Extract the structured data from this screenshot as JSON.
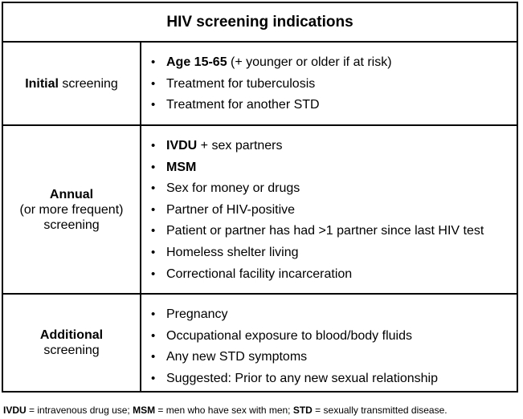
{
  "title": "HIV screening indications",
  "rows": [
    {
      "label_bold": "Initial",
      "label_rest": " screening",
      "items": [
        {
          "bold": "Age 15-65",
          "rest": " (+ younger or older if at risk)"
        },
        {
          "bold": "",
          "rest": "Treatment for tuberculosis"
        },
        {
          "bold": "",
          "rest": "Treatment for another STD"
        }
      ]
    },
    {
      "label_bold": "Annual",
      "label_line2": "(or more frequent)",
      "label_line3": "screening",
      "items": [
        {
          "bold": "IVDU",
          "rest": " + sex partners"
        },
        {
          "bold": "MSM",
          "rest": ""
        },
        {
          "bold": "",
          "rest": "Sex for money or drugs"
        },
        {
          "bold": "",
          "rest": "Partner of HIV-positive"
        },
        {
          "bold": "",
          "rest": "Patient or partner has had >1 partner since last HIV test"
        },
        {
          "bold": "",
          "rest": "Homeless shelter living"
        },
        {
          "bold": "",
          "rest": "Correctional facility incarceration"
        }
      ]
    },
    {
      "label_bold": "Additional",
      "label_line2": "screening",
      "items": [
        {
          "bold": "",
          "rest": "Pregnancy"
        },
        {
          "bold": "",
          "rest": "Occupational exposure to blood/body fluids"
        },
        {
          "bold": "",
          "rest": "Any new STD symptoms"
        },
        {
          "bold": "",
          "rest": "Suggested: Prior to any new sexual relationship"
        }
      ]
    }
  ],
  "footnote": {
    "a_bold": "IVDU",
    "a_rest": " = intravenous drug use; ",
    "b_bold": "MSM",
    "b_rest": " = men who have sex with men; ",
    "c_bold": "STD",
    "c_rest": " = sexually transmitted disease."
  }
}
